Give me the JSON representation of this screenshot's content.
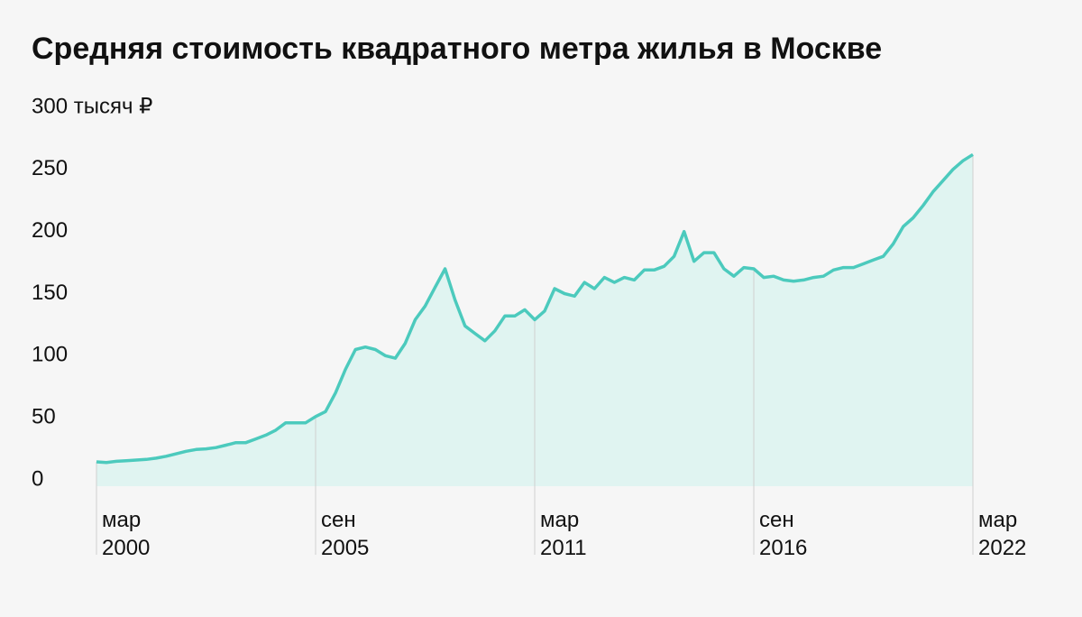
{
  "chart_data": {
    "type": "area",
    "title": "Средняя стоимость квадратного метра жилья в Москве",
    "x": [
      "2000-03",
      "2000-06",
      "2000-09",
      "2000-12",
      "2001-03",
      "2001-06",
      "2001-09",
      "2001-12",
      "2002-03",
      "2002-06",
      "2002-09",
      "2002-12",
      "2003-03",
      "2003-06",
      "2003-09",
      "2003-12",
      "2004-03",
      "2004-06",
      "2004-09",
      "2004-12",
      "2005-03",
      "2005-06",
      "2005-09",
      "2005-12",
      "2006-03",
      "2006-06",
      "2006-09",
      "2006-12",
      "2007-03",
      "2007-06",
      "2007-09",
      "2007-12",
      "2008-03",
      "2008-06",
      "2008-09",
      "2008-12",
      "2009-03",
      "2009-06",
      "2009-09",
      "2009-12",
      "2010-03",
      "2010-06",
      "2010-09",
      "2010-12",
      "2011-03",
      "2011-06",
      "2011-09",
      "2011-12",
      "2012-03",
      "2012-06",
      "2012-09",
      "2012-12",
      "2013-03",
      "2013-06",
      "2013-09",
      "2013-12",
      "2014-03",
      "2014-06",
      "2014-09",
      "2014-12",
      "2015-03",
      "2015-06",
      "2015-09",
      "2015-12",
      "2016-03",
      "2016-06",
      "2016-09",
      "2016-12",
      "2017-03",
      "2017-06",
      "2017-09",
      "2017-12",
      "2018-03",
      "2018-06",
      "2018-09",
      "2018-12",
      "2019-03",
      "2019-06",
      "2019-09",
      "2019-12",
      "2020-03",
      "2020-06",
      "2020-09",
      "2020-12",
      "2021-03",
      "2021-06",
      "2021-09",
      "2021-12",
      "2022-03"
    ],
    "values": [
      14.5,
      14,
      15,
      15.5,
      16,
      16.5,
      17.5,
      19,
      21,
      23,
      24.5,
      25,
      26,
      28,
      30,
      30,
      33,
      36,
      40,
      46,
      46,
      46,
      51,
      55,
      70,
      89,
      105,
      107,
      105,
      100,
      98,
      110,
      129,
      140,
      155,
      170,
      145,
      124,
      118,
      112,
      120,
      132,
      132,
      137,
      129,
      136,
      154,
      150,
      148,
      159,
      154,
      163,
      159,
      163,
      161,
      169,
      169,
      172,
      180,
      200,
      176,
      183,
      183,
      170,
      164,
      171,
      170,
      163,
      164,
      161,
      160,
      161,
      163,
      164,
      169,
      171,
      171,
      174,
      177,
      180,
      190,
      204,
      211,
      221,
      232,
      241,
      250,
      257,
      262
    ],
    "color": "#4ccabd",
    "fill": "#e0f4f1",
    "xlim": [
      "2000-03",
      "2022-03"
    ],
    "xticks": [
      {
        "value": "2000-03",
        "label": "мар 2000"
      },
      {
        "value": "2005-09",
        "label": "сен 2005"
      },
      {
        "value": "2011-03",
        "label": "мар 2011"
      },
      {
        "value": "2016-09",
        "label": "сен 2016"
      },
      {
        "value": "2022-03",
        "label": "мар 2022"
      }
    ],
    "ylim": [
      0,
      300
    ],
    "yticks": [
      0,
      50,
      100,
      150,
      200,
      250,
      {
        "value": 300,
        "label": "300 тысяч ₽"
      }
    ],
    "grid": false
  }
}
